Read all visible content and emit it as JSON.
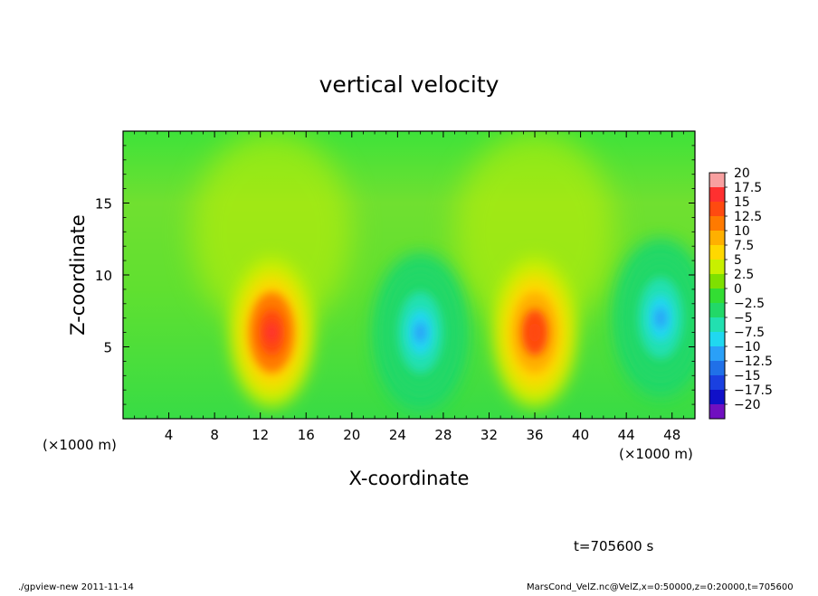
{
  "chart_data": {
    "type": "heatmap",
    "title": "vertical velocity",
    "xlabel": "X-coordinate",
    "ylabel": "Z-coordinate",
    "x_unit_label": "(×1000 m)",
    "x_unit_label_right": "(×1000 m)",
    "xlim": [
      0,
      50
    ],
    "ylim": [
      0,
      20
    ],
    "x_ticks": [
      4,
      8,
      12,
      16,
      20,
      24,
      28,
      32,
      36,
      40,
      44,
      48
    ],
    "x_tick_labels": [
      "4",
      "8",
      "12",
      "16",
      "20",
      "24",
      "28",
      "32",
      "36",
      "40",
      "44",
      "48"
    ],
    "y_ticks": [
      5,
      10,
      15
    ],
    "y_tick_labels": [
      "5",
      "10",
      "15"
    ],
    "colorbar": {
      "levels": [
        20,
        17.5,
        15,
        12.5,
        10,
        7.5,
        5,
        2.5,
        0,
        -2.5,
        -5,
        -7.5,
        -10,
        -12.5,
        -15,
        -17.5,
        -20
      ],
      "labels": [
        "20",
        "17.5",
        "15",
        "12.5",
        "10",
        "7.5",
        "5",
        "2.5",
        "0",
        "−2.5",
        "−5",
        "−7.5",
        "−10",
        "−12.5",
        "−15",
        "−17.5",
        "−20"
      ],
      "colors": [
        "#f8a0a0",
        "#ff3030",
        "#ff4a10",
        "#ff7a00",
        "#ffb000",
        "#ffd800",
        "#c8f000",
        "#7ee000",
        "#33dd33",
        "#22d868",
        "#22e0b0",
        "#20d8f0",
        "#2aa0f8",
        "#2070e8",
        "#1a40e0",
        "#1010c8",
        "#7010c0"
      ]
    },
    "features": [
      {
        "kind": "updraft",
        "x": 13,
        "z": 6,
        "peak": 16
      },
      {
        "kind": "downdraft",
        "x": 26,
        "z": 6,
        "peak": -11
      },
      {
        "kind": "updraft",
        "x": 36,
        "z": 6,
        "peak": 15
      },
      {
        "kind": "downdraft",
        "x": 47,
        "z": 7,
        "peak": -11
      }
    ],
    "background_value": 1
  },
  "annotations": {
    "time": "t=705600 s",
    "footer_left": "./gpview-new  2011-11-14",
    "footer_right": "MarsCond_VelZ.nc@VelZ,x=0:50000,z=0:20000,t=705600"
  }
}
